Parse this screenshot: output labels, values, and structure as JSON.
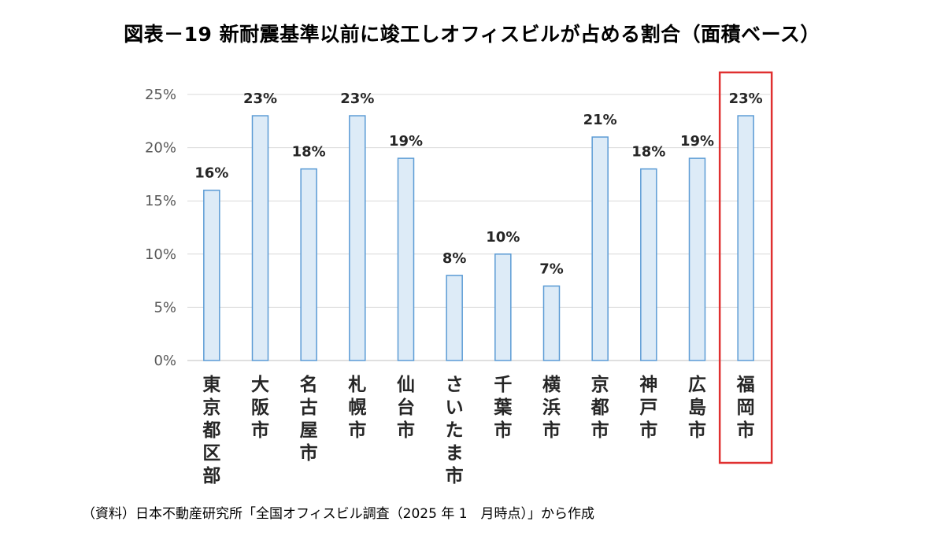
{
  "title": "図表－19 新耐震基準以前に竣工しオフィスビルが占める割合（面積ベース）",
  "source": "（資料）日本不動産研究所「全国オフィスビル調査（2025 年 1　月時点）」から作成",
  "colors": {
    "bar_fill": "#DDEBF7",
    "bar_stroke": "#5B9BD5",
    "grid": "#D9D9D9",
    "highlight": "#E03030"
  },
  "chart_data": {
    "type": "bar",
    "title": "図表－19 新耐震基準以前に竣工しオフィスビルが占める割合（面積ベース）",
    "xlabel": "",
    "ylabel": "",
    "categories": [
      "東京都区部",
      "大阪市",
      "名古屋市",
      "札幌市",
      "仙台市",
      "さいたま市",
      "千葉市",
      "横浜市",
      "京都市",
      "神戸市",
      "広島市",
      "福岡市"
    ],
    "values": [
      16,
      23,
      18,
      23,
      19,
      8,
      10,
      7,
      21,
      18,
      19,
      23
    ],
    "data_labels": [
      "16%",
      "23%",
      "18%",
      "23%",
      "19%",
      "8%",
      "10%",
      "7%",
      "21%",
      "18%",
      "19%",
      "23%"
    ],
    "ylim": [
      0,
      25
    ],
    "y_ticks": [
      0,
      5,
      10,
      15,
      20,
      25
    ],
    "y_tick_labels": [
      "0%",
      "5%",
      "10%",
      "15%",
      "20%",
      "25%"
    ],
    "grid": true,
    "legend": "none",
    "highlighted_category": "福岡市"
  }
}
